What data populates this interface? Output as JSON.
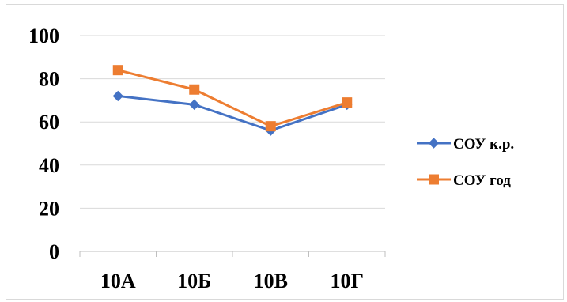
{
  "chart_data": {
    "type": "line",
    "categories": [
      "10А",
      "10Б",
      "10В",
      "10Г"
    ],
    "series": [
      {
        "name": "СОУ к.р.",
        "values": [
          72,
          68,
          56,
          68
        ],
        "color": "#4472C4",
        "marker": "diamond"
      },
      {
        "name": "СОУ год",
        "values": [
          84,
          75,
          58,
          69
        ],
        "color": "#ED7D31",
        "marker": "square"
      }
    ],
    "ylim": [
      0,
      100
    ],
    "yticks": [
      0,
      20,
      40,
      60,
      80,
      100
    ],
    "grid": true,
    "legend_position": "right"
  }
}
